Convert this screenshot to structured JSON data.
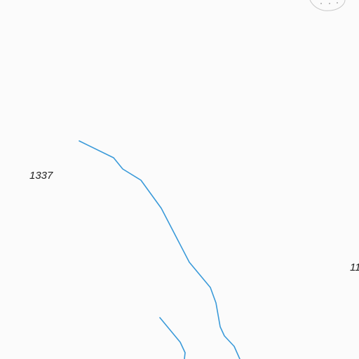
{
  "map": {
    "colors": {
      "background": "#fbfbfb",
      "water": "#3a9ad9",
      "area_outline": "#c8c8c8",
      "area_dots": "#a8a8a8",
      "label_text": "#222222"
    },
    "elevation_labels": [
      {
        "text": "1337"
      },
      {
        "text": "11"
      }
    ],
    "features": {
      "streams": [
        "main-stream",
        "tributary-stream"
      ],
      "areas": [
        "scrub-area"
      ]
    }
  }
}
